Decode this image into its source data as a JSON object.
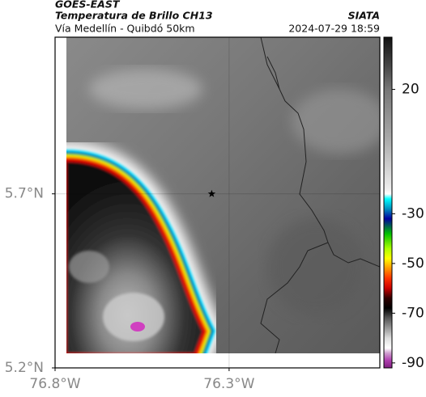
{
  "header": {
    "satellite": "GOES-EAST",
    "product": "Temperatura de Brillo CH13",
    "region": "Vía Medellín - Quibdó 50km",
    "source": "SIATA",
    "datetime": "2024-07-29 18:59"
  },
  "chart_data": {
    "type": "map",
    "xlim": [
      -76.8,
      -75.867
    ],
    "ylim": [
      5.2,
      6.15
    ],
    "xticks": [
      {
        "value": -76.8,
        "label": "76.8°W"
      },
      {
        "value": -76.3,
        "label": "76.3°W"
      }
    ],
    "yticks": [
      {
        "value": 5.2,
        "label": "5.2°N"
      },
      {
        "value": 5.7,
        "label": "5.7°N"
      }
    ],
    "grid": true,
    "marker": {
      "x": -76.35,
      "y": 5.7
    },
    "colorbar": {
      "lim": [
        -92,
        41
      ],
      "ticks": [
        20,
        -30,
        -50,
        -70,
        -90
      ]
    }
  }
}
